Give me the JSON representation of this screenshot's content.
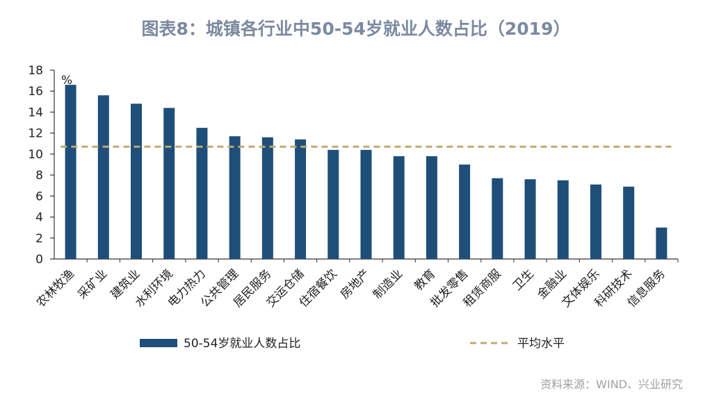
{
  "title": "图表8：城镇各行业中50-54岁就业人数占比（2019）",
  "source": "资料来源：WIND、兴业研究",
  "chart_data": {
    "type": "bar",
    "unit_label": "%",
    "categories": [
      "农林牧渔",
      "采矿业",
      "建筑业",
      "水利环境",
      "电力热力",
      "公共管理",
      "居民服务",
      "交运仓储",
      "住宿餐饮",
      "房地产",
      "制造业",
      "教育",
      "批发零售",
      "租赁商服",
      "卫生",
      "金融业",
      "文体娱乐",
      "科研技术",
      "信息服务"
    ],
    "series": [
      {
        "name": "50-54岁就业人数占比",
        "type": "bar",
        "color": "#1f4e79",
        "values": [
          16.6,
          15.6,
          14.8,
          14.4,
          12.5,
          11.7,
          11.6,
          11.4,
          10.4,
          10.4,
          9.8,
          9.8,
          9.0,
          7.7,
          7.6,
          7.5,
          7.1,
          6.9,
          3.0
        ]
      },
      {
        "name": "平均水平",
        "type": "line",
        "style": "dashed",
        "color": "#c0a870",
        "value": 10.7
      }
    ],
    "ylim": [
      0,
      18
    ],
    "yticks": [
      "0",
      "2",
      "4",
      "6",
      "8",
      "10",
      "12",
      "14",
      "16",
      "18"
    ],
    "legend_position": "bottom",
    "grid": false
  }
}
